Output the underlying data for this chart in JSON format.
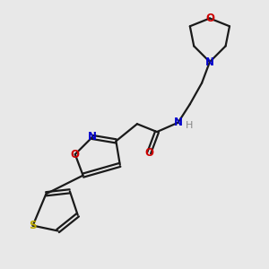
{
  "bg_color": "#e8e8e8",
  "bond_color": "#1a1a1a",
  "N_color": "#0000cc",
  "O_color": "#cc0000",
  "S_color": "#bbaa00",
  "H_color": "#888888",
  "line_width": 1.6,
  "font_size": 8.5,
  "fig_width": 3.0,
  "fig_height": 3.0,
  "dpi": 100,
  "xlim": [
    0,
    10
  ],
  "ylim": [
    0,
    10
  ]
}
